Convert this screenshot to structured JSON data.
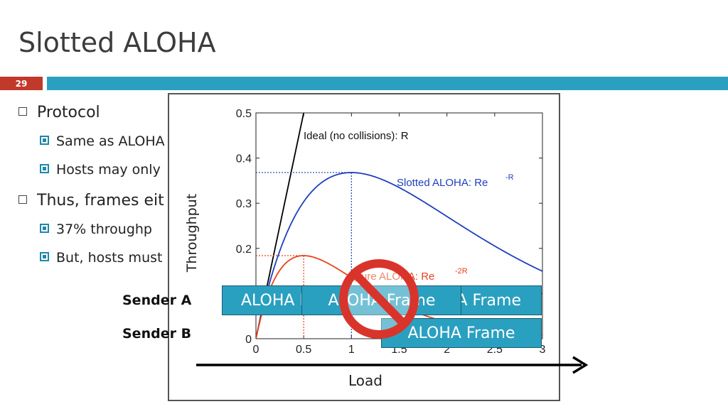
{
  "slide": {
    "title": "Slotted ALOHA",
    "page_number": "29"
  },
  "bullets": [
    {
      "level": 1,
      "text": "Protocol"
    },
    {
      "level": 2,
      "text": "Same as ALOHA"
    },
    {
      "level": 2,
      "text": "Hosts may only"
    },
    {
      "level": 1,
      "text": "Thus, frames eit"
    },
    {
      "level": 2,
      "text": "37% throughp"
    },
    {
      "level": 2,
      "text": "But, hosts must"
    }
  ],
  "chart_data": {
    "type": "line",
    "xlabel": "Load",
    "ylabel": "Throughput",
    "xlim": [
      0,
      3
    ],
    "ylim": [
      0,
      0.5
    ],
    "x_ticks": [
      "0",
      "0.5",
      "1",
      "1.5",
      "2",
      "2.5",
      "3"
    ],
    "y_ticks": [
      "0",
      "0.1",
      "0.2",
      "0.3",
      "0.4",
      "0.5"
    ],
    "series": [
      {
        "name": "Ideal (no collisions): R",
        "color": "#000000",
        "formula": "R",
        "points": [
          [
            0,
            0
          ],
          [
            0.5,
            0.5
          ]
        ]
      },
      {
        "name": "Slotted ALOHA: Re^-R",
        "color": "#1f3fbf",
        "formula": "R*exp(-R)"
      },
      {
        "name": "Pure ALOHA: Re^-2R",
        "color": "#e8431c",
        "formula": "R*exp(-2R)"
      }
    ],
    "annotations": {
      "ideal_label": "Ideal (no collisions): R",
      "slotted_label": "Slotted ALOHA: Re",
      "slotted_exp": "-R",
      "pure_label": "Pure ALOHA: Re",
      "pure_exp": "-2R",
      "slotted_peak": [
        1,
        0.368
      ],
      "pure_peak": [
        0.5,
        0.184
      ]
    }
  },
  "senders": {
    "a_label": "Sender A",
    "b_label": "Sender B"
  },
  "frames": {
    "a1": "ALOHA Frame",
    "a2": "ALOHA Frame",
    "a3": "ALOHA Frame",
    "b1": "ALOHA Frame"
  },
  "icons": {
    "prohibited": "no-sign-icon",
    "arrow": "right-arrow-icon"
  },
  "colors": {
    "accent": "#2aa0c0",
    "page_badge": "#c0392b",
    "no_sign": "#d9342b"
  }
}
